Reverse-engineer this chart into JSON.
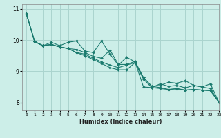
{
  "xlabel": "Humidex (Indice chaleur)",
  "ylabel": "",
  "bg_color": "#cceee8",
  "grid_color": "#aad4ce",
  "line_color": "#1a7a6e",
  "xlim": [
    -0.5,
    23
  ],
  "ylim": [
    7.75,
    11.15
  ],
  "yticks": [
    8,
    9,
    10,
    11
  ],
  "xticks": [
    0,
    1,
    2,
    3,
    4,
    5,
    6,
    7,
    8,
    9,
    10,
    11,
    12,
    13,
    14,
    15,
    16,
    17,
    18,
    19,
    20,
    21,
    22,
    23
  ],
  "series": [
    [
      10.85,
      9.95,
      9.82,
      9.93,
      9.82,
      9.93,
      9.97,
      9.65,
      9.6,
      9.97,
      9.55,
      9.2,
      9.45,
      9.3,
      8.5,
      8.48,
      8.6,
      8.52,
      8.55,
      8.47,
      8.55,
      8.5,
      8.6,
      8.02
    ],
    [
      10.85,
      9.95,
      9.82,
      9.86,
      9.78,
      9.73,
      9.6,
      9.5,
      9.38,
      9.25,
      9.12,
      9.05,
      9.05,
      9.28,
      8.8,
      8.52,
      8.48,
      8.42,
      8.45,
      8.4,
      8.42,
      8.4,
      8.38,
      8.02
    ],
    [
      10.85,
      9.95,
      9.82,
      9.86,
      9.78,
      9.73,
      9.7,
      9.6,
      9.48,
      9.42,
      9.68,
      9.22,
      9.22,
      9.32,
      8.8,
      8.52,
      8.55,
      8.65,
      8.62,
      8.7,
      8.55,
      8.5,
      8.45,
      8.02
    ],
    [
      10.85,
      9.95,
      9.82,
      9.86,
      9.78,
      9.73,
      9.6,
      9.55,
      9.42,
      9.3,
      9.2,
      9.12,
      9.2,
      9.28,
      8.75,
      8.48,
      8.45,
      8.42,
      8.44,
      8.4,
      8.42,
      8.4,
      8.38,
      8.02
    ]
  ]
}
